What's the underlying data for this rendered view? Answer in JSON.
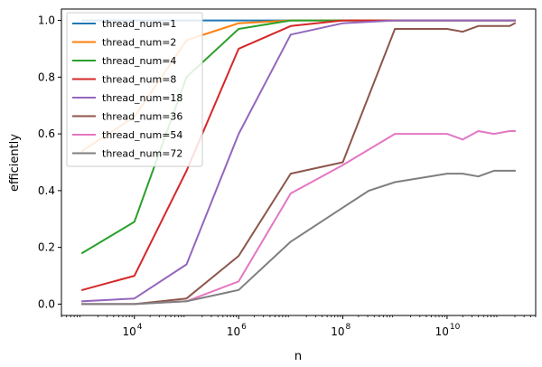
{
  "chart_data": {
    "type": "line",
    "xlabel": "n",
    "ylabel": "efficiently",
    "xscale": "log",
    "xlim_exp": [
      2.6,
      11.7
    ],
    "ylim": [
      -0.04,
      1.04
    ],
    "xticks": [
      {
        "base": "10",
        "exp": "4",
        "value_exp": 4
      },
      {
        "base": "10",
        "exp": "6",
        "value_exp": 6
      },
      {
        "base": "10",
        "exp": "8",
        "value_exp": 8
      },
      {
        "base": "10",
        "exp": "10",
        "value_exp": 10
      }
    ],
    "yticks": [
      {
        "label": "0.0",
        "value": 0.0
      },
      {
        "label": "0.2",
        "value": 0.2
      },
      {
        "label": "0.4",
        "value": 0.4
      },
      {
        "label": "0.6",
        "value": 0.6
      },
      {
        "label": "0.8",
        "value": 0.8
      },
      {
        "label": "1.0",
        "value": 1.0
      }
    ],
    "grid": false,
    "legend_position": "top-left",
    "series": [
      {
        "name": "thread_num=1",
        "color": "#1f77b4",
        "points": [
          [
            3,
            1.0
          ],
          [
            4,
            1.0
          ],
          [
            5,
            1.0
          ],
          [
            6,
            1.0
          ],
          [
            7,
            1.0
          ],
          [
            8,
            1.0
          ],
          [
            9,
            1.0
          ],
          [
            10,
            1.0
          ],
          [
            10.3,
            1.0
          ],
          [
            10.6,
            1.0
          ],
          [
            10.9,
            1.0
          ],
          [
            11.2,
            1.0
          ],
          [
            11.3,
            1.0
          ]
        ]
      },
      {
        "name": "thread_num=2",
        "color": "#ff7f0e",
        "points": [
          [
            3,
            0.54
          ],
          [
            4,
            0.66
          ],
          [
            5,
            0.93
          ],
          [
            6,
            0.99
          ],
          [
            7,
            1.0
          ],
          [
            8,
            1.0
          ],
          [
            9,
            1.0
          ],
          [
            10,
            1.0
          ],
          [
            10.3,
            1.0
          ],
          [
            10.6,
            1.0
          ],
          [
            10.9,
            1.0
          ],
          [
            11.2,
            1.0
          ],
          [
            11.3,
            1.0
          ]
        ]
      },
      {
        "name": "thread_num=4",
        "color": "#2ca02c",
        "points": [
          [
            3,
            0.18
          ],
          [
            4,
            0.29
          ],
          [
            5,
            0.8
          ],
          [
            6,
            0.97
          ],
          [
            7,
            1.0
          ],
          [
            8,
            1.0
          ],
          [
            9,
            1.0
          ],
          [
            10,
            1.0
          ],
          [
            10.3,
            1.0
          ],
          [
            10.6,
            1.0
          ],
          [
            10.9,
            1.0
          ],
          [
            11.2,
            1.0
          ],
          [
            11.3,
            1.0
          ]
        ]
      },
      {
        "name": "thread_num=8",
        "color": "#d62728",
        "points": [
          [
            3,
            0.05
          ],
          [
            4,
            0.1
          ],
          [
            5,
            0.47
          ],
          [
            6,
            0.9
          ],
          [
            7,
            0.98
          ],
          [
            8,
            1.0
          ],
          [
            9,
            1.0
          ],
          [
            10,
            1.0
          ],
          [
            10.3,
            1.0
          ],
          [
            10.6,
            1.0
          ],
          [
            10.9,
            1.0
          ],
          [
            11.2,
            1.0
          ],
          [
            11.3,
            1.0
          ]
        ]
      },
      {
        "name": "thread_num=18",
        "color": "#9467bd",
        "points": [
          [
            3,
            0.01
          ],
          [
            4,
            0.02
          ],
          [
            5,
            0.14
          ],
          [
            6,
            0.6
          ],
          [
            7,
            0.95
          ],
          [
            8,
            0.99
          ],
          [
            9,
            1.0
          ],
          [
            10,
            1.0
          ],
          [
            10.3,
            1.0
          ],
          [
            10.6,
            1.0
          ],
          [
            10.9,
            1.0
          ],
          [
            11.2,
            1.0
          ],
          [
            11.3,
            1.0
          ]
        ]
      },
      {
        "name": "thread_num=36",
        "color": "#8c564b",
        "points": [
          [
            3,
            0.0
          ],
          [
            4,
            0.0
          ],
          [
            5,
            0.02
          ],
          [
            6,
            0.17
          ],
          [
            7,
            0.46
          ],
          [
            8,
            0.5
          ],
          [
            9,
            0.97
          ],
          [
            10,
            0.97
          ],
          [
            10.3,
            0.96
          ],
          [
            10.6,
            0.98
          ],
          [
            10.9,
            0.98
          ],
          [
            11.2,
            0.98
          ],
          [
            11.3,
            0.99
          ]
        ]
      },
      {
        "name": "thread_num=54",
        "color": "#e377c2",
        "points": [
          [
            3,
            0.0
          ],
          [
            4,
            0.0
          ],
          [
            5,
            0.01
          ],
          [
            6,
            0.08
          ],
          [
            7,
            0.39
          ],
          [
            8,
            0.49
          ],
          [
            9,
            0.6
          ],
          [
            10,
            0.6
          ],
          [
            10.3,
            0.58
          ],
          [
            10.6,
            0.61
          ],
          [
            10.9,
            0.6
          ],
          [
            11.2,
            0.61
          ],
          [
            11.3,
            0.61
          ]
        ]
      },
      {
        "name": "thread_num=72",
        "color": "#7f7f7f",
        "points": [
          [
            3,
            0.0
          ],
          [
            4,
            0.0
          ],
          [
            5,
            0.01
          ],
          [
            6,
            0.05
          ],
          [
            7,
            0.22
          ],
          [
            8,
            0.34
          ],
          [
            8.5,
            0.4
          ],
          [
            9,
            0.43
          ],
          [
            10,
            0.46
          ],
          [
            10.3,
            0.46
          ],
          [
            10.6,
            0.45
          ],
          [
            10.9,
            0.47
          ],
          [
            11.3,
            0.47
          ]
        ]
      }
    ]
  }
}
